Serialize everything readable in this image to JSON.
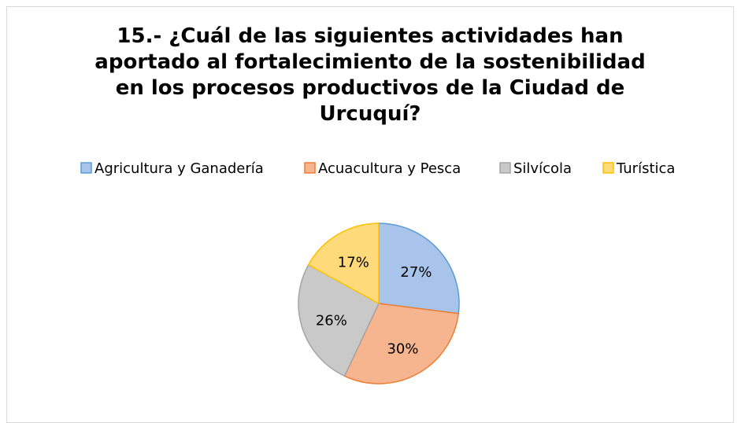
{
  "chart_data": {
    "type": "pie",
    "title": "15.- ¿Cuál de las siguientes actividades han aportado al fortalecimiento de la sostenibilidad en los procesos productivos de la Ciudad de Urcuquí?",
    "categories": [
      "Agricultura y Ganadería",
      "Acuacultura y Pesca",
      "Silvícola",
      "Turística"
    ],
    "values": [
      27,
      30,
      26,
      17
    ],
    "value_labels": [
      "27%",
      "30%",
      "26%",
      "17%"
    ],
    "colors": [
      "#a9c4eb",
      "#f6b48f",
      "#c9c9c9",
      "#ffda7a"
    ],
    "edge_colors": [
      "#5b9bd5",
      "#ed7d31",
      "#a5a5a5",
      "#ffc000"
    ],
    "legend": "top"
  }
}
